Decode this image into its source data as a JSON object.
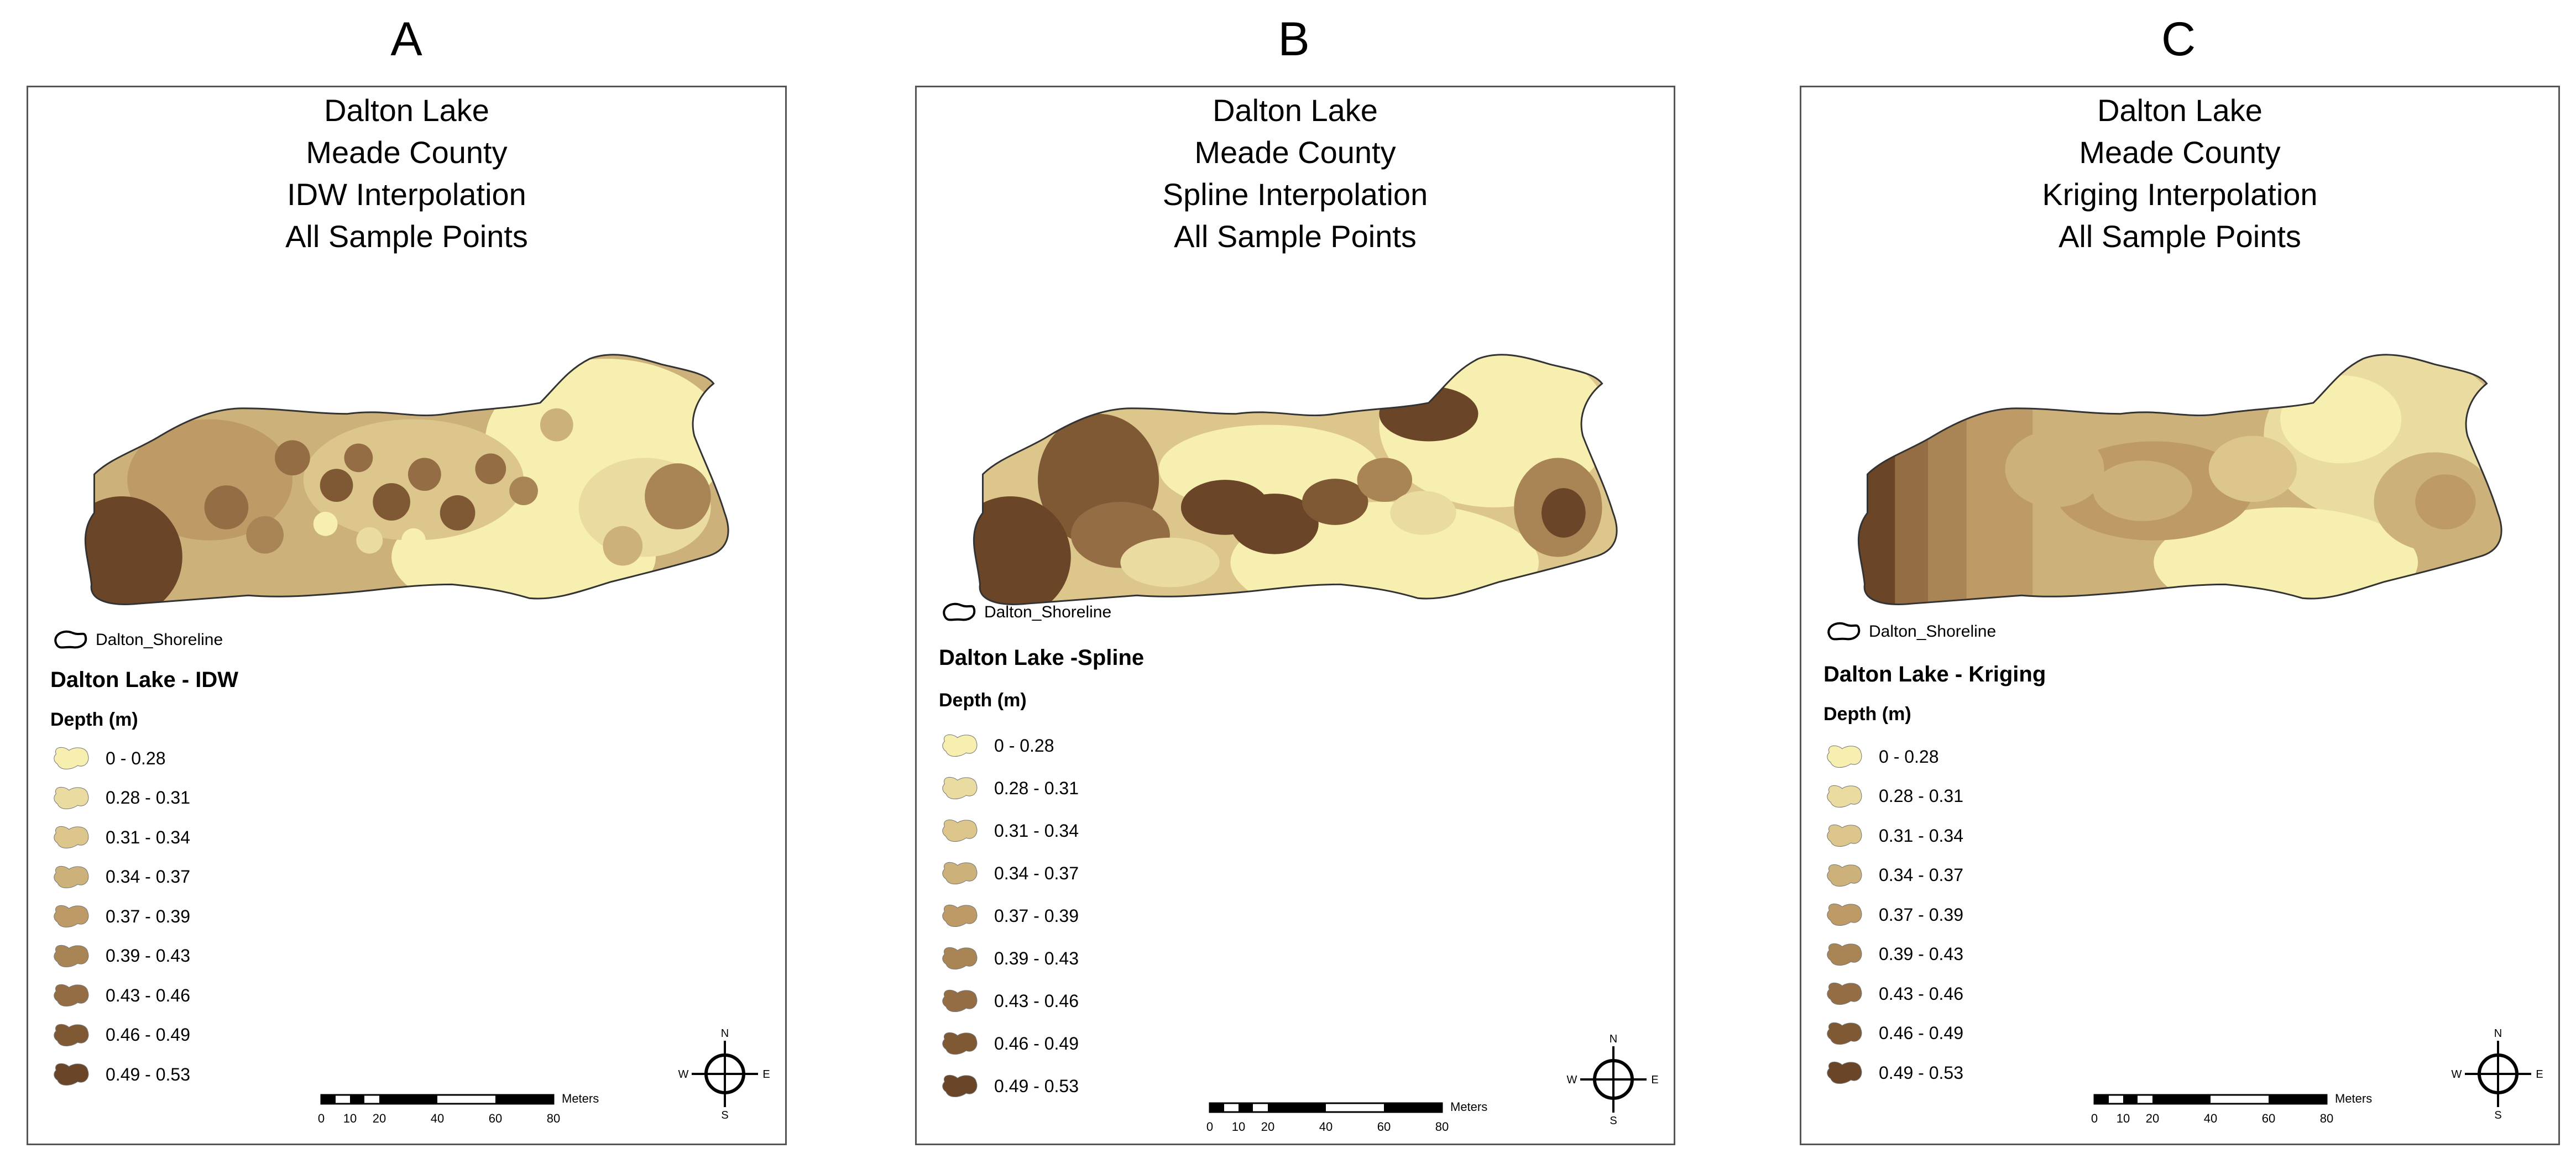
{
  "panels": [
    {
      "letter": "A",
      "title_lines": [
        "Dalton Lake",
        "Meade County",
        "IDW Interpolation",
        "All Sample Points"
      ],
      "shoreline_label": "Dalton_Shoreline",
      "legend_title": "Dalton Lake - IDW",
      "legend_subtitle": "Depth (m)",
      "scale_unit": "Meters",
      "scale_ticks": [
        "0",
        "10",
        "20",
        "40",
        "60",
        "80"
      ],
      "compass": {
        "n": "N",
        "s": "S",
        "e": "E",
        "w": "W"
      }
    },
    {
      "letter": "B",
      "title_lines": [
        "Dalton Lake",
        "Meade County",
        "Spline Interpolation",
        "All Sample Points"
      ],
      "shoreline_label": "Dalton_Shoreline",
      "legend_title": "Dalton Lake -Spline",
      "legend_subtitle": "Depth (m)",
      "scale_unit": "Meters",
      "scale_ticks": [
        "0",
        "10",
        "20",
        "40",
        "60",
        "80"
      ],
      "compass": {
        "n": "N",
        "s": "S",
        "e": "E",
        "w": "W"
      }
    },
    {
      "letter": "C",
      "title_lines": [
        "Dalton Lake",
        "Meade County",
        "Kriging Interpolation",
        "All Sample Points"
      ],
      "shoreline_label": "Dalton_Shoreline",
      "legend_title": "Dalton Lake - Kriging",
      "legend_subtitle": "Depth (m)",
      "scale_unit": "Meters",
      "scale_ticks": [
        "0",
        "10",
        "20",
        "40",
        "60",
        "80"
      ],
      "compass": {
        "n": "N",
        "s": "S",
        "e": "E",
        "w": "W"
      }
    }
  ],
  "depth_classes": [
    {
      "label": "0 - 0.28",
      "color": "#f7efb0"
    },
    {
      "label": "0.28 - 0.31",
      "color": "#eadca0"
    },
    {
      "label": "0.31 - 0.34",
      "color": "#dcc68b"
    },
    {
      "label": "0.34 - 0.37",
      "color": "#cdb17a"
    },
    {
      "label": "0.37 - 0.39",
      "color": "#bd9a66"
    },
    {
      "label": "0.39 - 0.43",
      "color": "#a98556"
    },
    {
      "label": "0.43 - 0.46",
      "color": "#946d45"
    },
    {
      "label": "0.46 - 0.49",
      "color": "#7f5834"
    },
    {
      "label": "0.49 - 0.53",
      "color": "#6b4527"
    }
  ]
}
